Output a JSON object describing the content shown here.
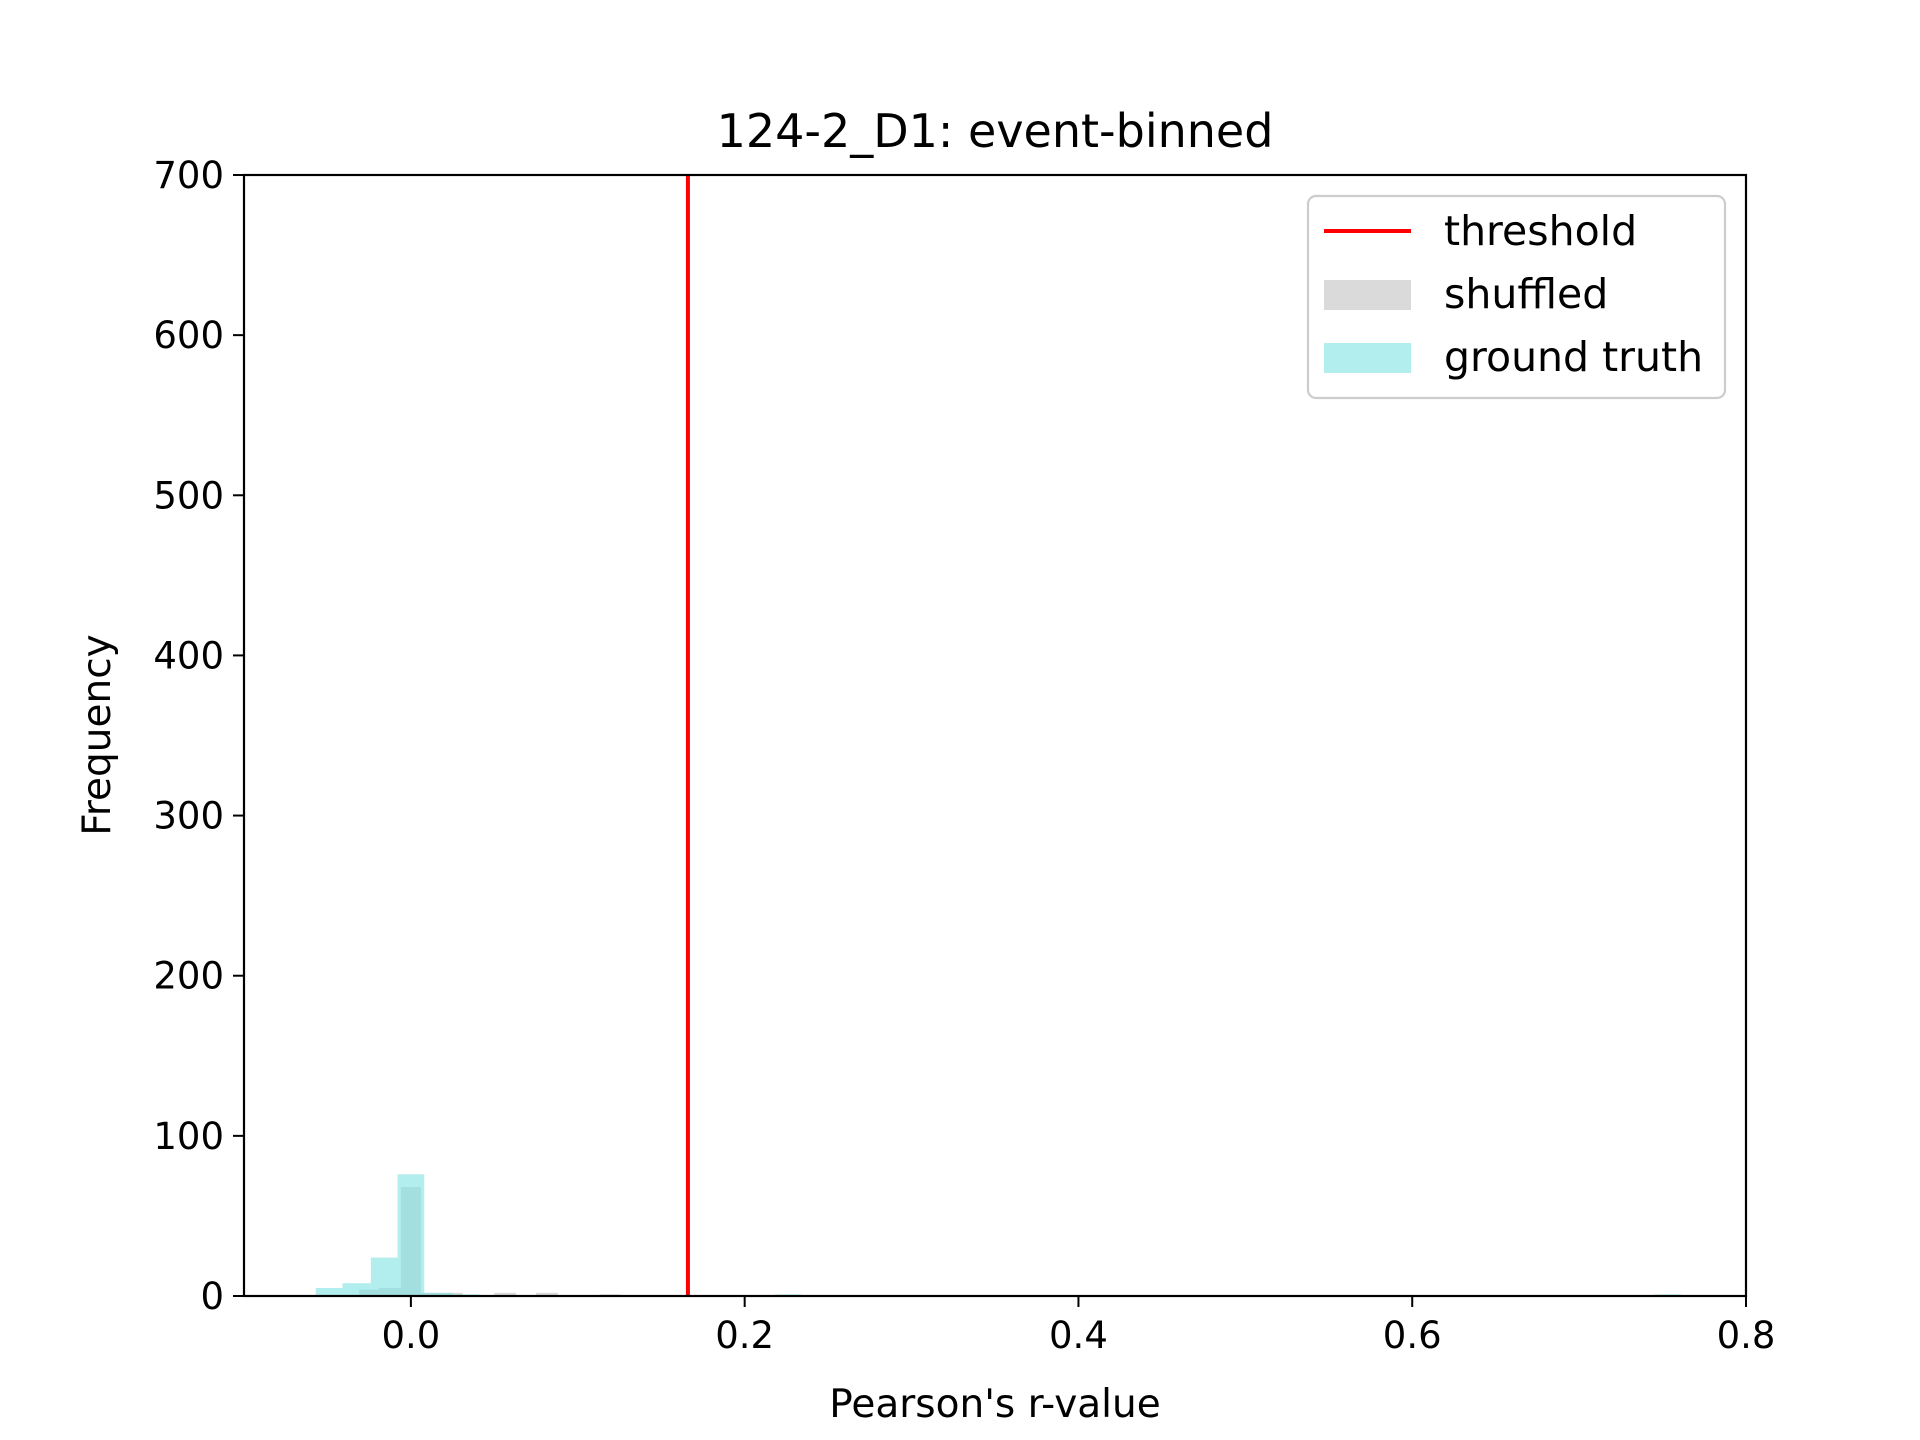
{
  "chart_data": {
    "type": "histogram",
    "title": "124-2_D1: event-binned",
    "xlabel": "Pearson's r-value",
    "ylabel": "Frequency",
    "xlim": [
      -0.1,
      0.8
    ],
    "ylim": [
      0,
      700
    ],
    "xticks": [
      0.0,
      0.2,
      0.4,
      0.6,
      0.8
    ],
    "xtick_labels": [
      "0.0",
      "0.2",
      "0.4",
      "0.6",
      "0.8"
    ],
    "yticks": [
      0,
      100,
      200,
      300,
      400,
      500,
      600,
      700
    ],
    "ytick_labels": [
      "0",
      "100",
      "200",
      "300",
      "400",
      "500",
      "600",
      "700"
    ],
    "grid": false,
    "legend_position": "top-right",
    "threshold": {
      "name": "threshold",
      "x": 0.166,
      "color": "#ff0000"
    },
    "series": [
      {
        "name": "shuffled",
        "color": "#d3d3d3",
        "opacity": 0.85,
        "bins": [
          {
            "x0": -0.031,
            "x1": -0.019,
            "count": 4
          },
          {
            "x0": -0.019,
            "x1": -0.006,
            "count": 5
          },
          {
            "x0": -0.006,
            "x1": 0.006,
            "count": 68
          },
          {
            "x0": 0.006,
            "x1": 0.019,
            "count": 2
          },
          {
            "x0": 0.019,
            "x1": 0.031,
            "count": 2
          },
          {
            "x0": 0.05,
            "x1": 0.063,
            "count": 2
          },
          {
            "x0": 0.075,
            "x1": 0.088,
            "count": 2
          },
          {
            "x0": 0.113,
            "x1": 0.125,
            "count": 1
          }
        ]
      },
      {
        "name": "ground truth",
        "color": "#7fe3e3",
        "opacity": 0.6,
        "bins": [
          {
            "x0": -0.057,
            "x1": -0.041,
            "count": 5
          },
          {
            "x0": -0.041,
            "x1": -0.024,
            "count": 8
          },
          {
            "x0": -0.024,
            "x1": -0.008,
            "count": 24
          },
          {
            "x0": -0.008,
            "x1": 0.008,
            "count": 76
          },
          {
            "x0": 0.008,
            "x1": 0.025,
            "count": 2
          },
          {
            "x0": 0.025,
            "x1": 0.041,
            "count": 1
          },
          {
            "x0": 0.218,
            "x1": 0.234,
            "count": 1
          },
          {
            "x0": 0.745,
            "x1": 0.761,
            "count": 1
          }
        ]
      }
    ]
  }
}
